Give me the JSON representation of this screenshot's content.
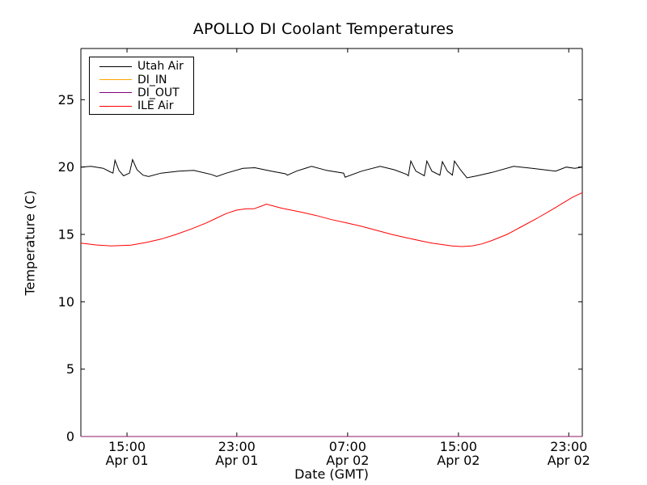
{
  "figure": {
    "background": "#ffffff",
    "axis_color": "#000000"
  },
  "chart_data": {
    "type": "line",
    "title": "APOLLO DI Coolant Temperatures",
    "xlabel": "Date (GMT)",
    "ylabel": "Temperature (C)",
    "ylim": [
      0,
      28.8
    ],
    "yticks": [
      0,
      5,
      10,
      15,
      20,
      25
    ],
    "grid": false,
    "legend_position": "upper left",
    "xticks": [
      {
        "pos": 0.092,
        "time": "15:00",
        "date": "Apr 01"
      },
      {
        "pos": 0.311,
        "time": "23:00",
        "date": "Apr 01"
      },
      {
        "pos": 0.532,
        "time": "07:00",
        "date": "Apr 02"
      },
      {
        "pos": 0.753,
        "time": "15:00",
        "date": "Apr 02"
      },
      {
        "pos": 0.973,
        "time": "23:00",
        "date": "Apr 02"
      }
    ],
    "series": [
      {
        "name": "Utah Air",
        "color": "#000000",
        "opacity": 1,
        "points": [
          [
            0.0,
            20.0
          ],
          [
            0.02,
            20.05
          ],
          [
            0.045,
            19.9
          ],
          [
            0.058,
            19.65
          ],
          [
            0.064,
            19.55
          ],
          [
            0.068,
            20.5
          ],
          [
            0.076,
            19.75
          ],
          [
            0.085,
            19.35
          ],
          [
            0.097,
            19.55
          ],
          [
            0.103,
            20.55
          ],
          [
            0.112,
            19.8
          ],
          [
            0.124,
            19.4
          ],
          [
            0.135,
            19.3
          ],
          [
            0.16,
            19.55
          ],
          [
            0.195,
            19.7
          ],
          [
            0.225,
            19.75
          ],
          [
            0.26,
            19.45
          ],
          [
            0.271,
            19.3
          ],
          [
            0.29,
            19.55
          ],
          [
            0.323,
            19.9
          ],
          [
            0.347,
            19.95
          ],
          [
            0.38,
            19.7
          ],
          [
            0.408,
            19.5
          ],
          [
            0.412,
            19.4
          ],
          [
            0.43,
            19.7
          ],
          [
            0.46,
            20.05
          ],
          [
            0.49,
            19.75
          ],
          [
            0.524,
            19.55
          ],
          [
            0.527,
            19.25
          ],
          [
            0.56,
            19.7
          ],
          [
            0.597,
            20.05
          ],
          [
            0.625,
            19.8
          ],
          [
            0.65,
            19.45
          ],
          [
            0.653,
            19.35
          ],
          [
            0.658,
            20.45
          ],
          [
            0.668,
            19.7
          ],
          [
            0.685,
            19.35
          ],
          [
            0.69,
            20.45
          ],
          [
            0.7,
            19.7
          ],
          [
            0.716,
            19.4
          ],
          [
            0.721,
            20.4
          ],
          [
            0.731,
            19.7
          ],
          [
            0.741,
            19.4
          ],
          [
            0.745,
            20.45
          ],
          [
            0.757,
            19.8
          ],
          [
            0.77,
            19.2
          ],
          [
            0.79,
            19.35
          ],
          [
            0.82,
            19.6
          ],
          [
            0.863,
            20.05
          ],
          [
            0.9,
            19.9
          ],
          [
            0.947,
            19.7
          ],
          [
            0.968,
            20.0
          ],
          [
            0.985,
            19.9
          ],
          [
            1.0,
            20.0
          ]
        ]
      },
      {
        "name": "DI_IN",
        "color": "#ffa500",
        "opacity": 0.8,
        "points": [
          [
            0,
            0
          ],
          [
            1,
            0
          ]
        ]
      },
      {
        "name": "DI_OUT",
        "color": "#800080",
        "opacity": 0.8,
        "points": [
          [
            0,
            0
          ],
          [
            1,
            0
          ]
        ]
      },
      {
        "name": "ILE Air",
        "color": "#ff0000",
        "opacity": 1,
        "points": [
          [
            0.0,
            14.35
          ],
          [
            0.03,
            14.22
          ],
          [
            0.06,
            14.15
          ],
          [
            0.1,
            14.2
          ],
          [
            0.13,
            14.4
          ],
          [
            0.16,
            14.65
          ],
          [
            0.19,
            15.0
          ],
          [
            0.22,
            15.4
          ],
          [
            0.25,
            15.85
          ],
          [
            0.27,
            16.2
          ],
          [
            0.29,
            16.55
          ],
          [
            0.31,
            16.8
          ],
          [
            0.33,
            16.9
          ],
          [
            0.345,
            16.9
          ],
          [
            0.36,
            17.1
          ],
          [
            0.37,
            17.25
          ],
          [
            0.385,
            17.1
          ],
          [
            0.4,
            16.95
          ],
          [
            0.42,
            16.8
          ],
          [
            0.44,
            16.65
          ],
          [
            0.47,
            16.4
          ],
          [
            0.5,
            16.1
          ],
          [
            0.53,
            15.85
          ],
          [
            0.56,
            15.6
          ],
          [
            0.59,
            15.3
          ],
          [
            0.62,
            15.0
          ],
          [
            0.65,
            14.75
          ],
          [
            0.68,
            14.5
          ],
          [
            0.7,
            14.35
          ],
          [
            0.72,
            14.25
          ],
          [
            0.74,
            14.15
          ],
          [
            0.76,
            14.1
          ],
          [
            0.78,
            14.15
          ],
          [
            0.8,
            14.3
          ],
          [
            0.82,
            14.55
          ],
          [
            0.85,
            15.0
          ],
          [
            0.88,
            15.6
          ],
          [
            0.91,
            16.2
          ],
          [
            0.94,
            16.85
          ],
          [
            0.96,
            17.3
          ],
          [
            0.98,
            17.75
          ],
          [
            1.0,
            18.1
          ]
        ]
      }
    ]
  }
}
